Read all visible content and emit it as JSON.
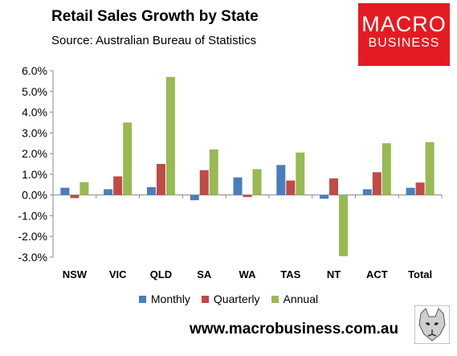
{
  "header": {
    "title": "Retail Sales Growth by State",
    "subtitle": "Source: Australian Bureau of Statistics"
  },
  "logo": {
    "line1": "MACRO",
    "line2": "BUSINESS",
    "color": "#e31c23"
  },
  "footer": {
    "url": "www.macrobusiness.com.au"
  },
  "chart_data": {
    "type": "bar",
    "title": "Retail Sales Growth by State",
    "xlabel": "",
    "ylabel": "",
    "categories": [
      "NSW",
      "VIC",
      "QLD",
      "SA",
      "WA",
      "TAS",
      "NT",
      "ACT",
      "Total"
    ],
    "series": [
      {
        "name": "Monthly",
        "color": "#4a7ebb",
        "values": [
          0.35,
          0.28,
          0.38,
          -0.25,
          0.85,
          1.45,
          -0.18,
          0.28,
          0.35
        ]
      },
      {
        "name": "Quarterly",
        "color": "#be4b48",
        "values": [
          -0.15,
          0.9,
          1.5,
          1.2,
          -0.1,
          0.7,
          0.8,
          1.1,
          0.6
        ]
      },
      {
        "name": "Annual",
        "color": "#98b954",
        "values": [
          0.62,
          3.5,
          5.7,
          2.2,
          1.25,
          2.05,
          -2.95,
          2.5,
          2.55
        ]
      }
    ],
    "ylim": [
      -3.0,
      6.0
    ],
    "yticks": [
      "6.0%",
      "5.0%",
      "4.0%",
      "3.0%",
      "2.0%",
      "1.0%",
      "0.0%",
      "-1.0%",
      "-2.0%",
      "-3.0%"
    ],
    "grid": false,
    "legend": "bottom"
  }
}
